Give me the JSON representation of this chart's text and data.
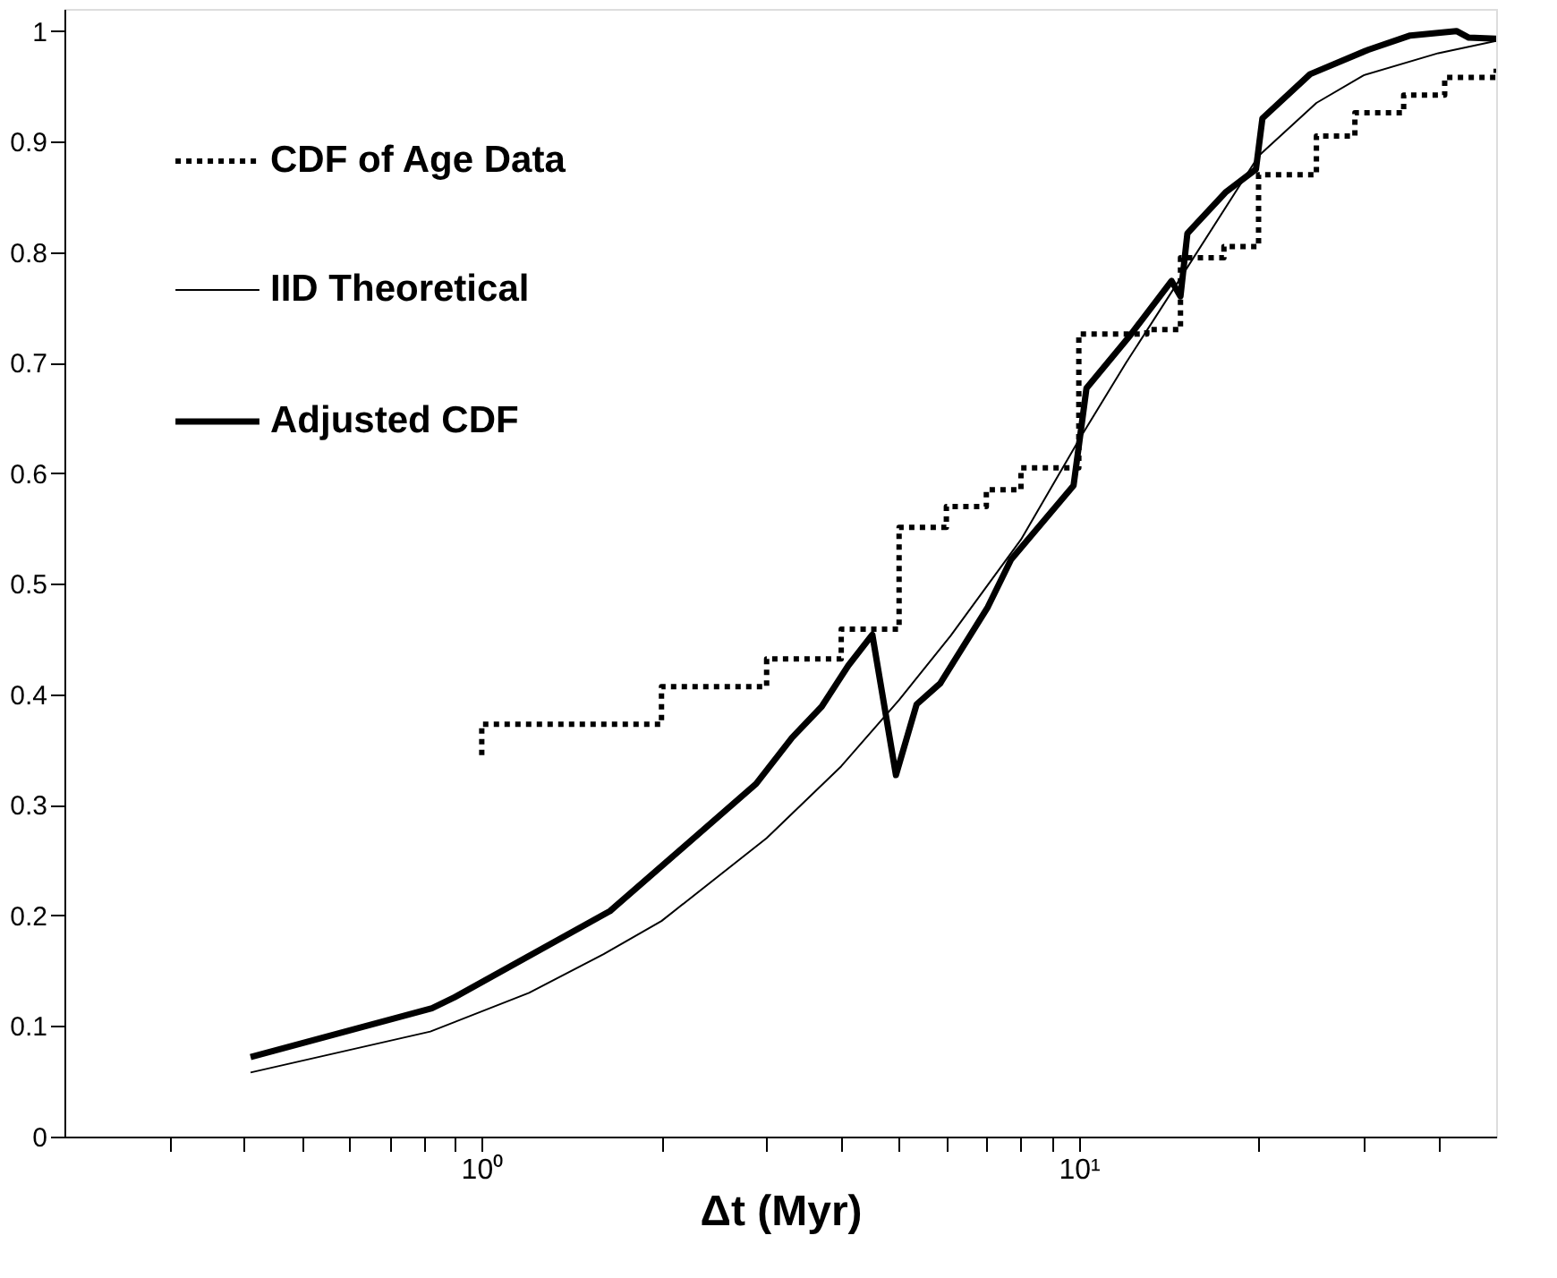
{
  "chart_data": {
    "type": "line",
    "xlabel": "Δt (Myr)",
    "log": "x",
    "grid": false,
    "legend": "top left",
    "xlim": [
      0.2,
      50
    ],
    "ylim": [
      0,
      1.02
    ],
    "xticks": [
      {
        "value": 0.3,
        "label": null
      },
      {
        "value": 0.4,
        "label": null
      },
      {
        "value": 0.5,
        "label": null
      },
      {
        "value": 0.6,
        "label": null
      },
      {
        "value": 0.7,
        "label": null
      },
      {
        "value": 0.8,
        "label": null
      },
      {
        "value": 0.9,
        "label": null
      },
      {
        "value": 1,
        "label": "10⁰"
      },
      {
        "value": 2,
        "label": null
      },
      {
        "value": 3,
        "label": null
      },
      {
        "value": 4,
        "label": null
      },
      {
        "value": 5,
        "label": null
      },
      {
        "value": 6,
        "label": null
      },
      {
        "value": 7,
        "label": null
      },
      {
        "value": 8,
        "label": null
      },
      {
        "value": 9,
        "label": null
      },
      {
        "value": 10,
        "label": "10¹"
      },
      {
        "value": 20,
        "label": null
      },
      {
        "value": 30,
        "label": null
      },
      {
        "value": 40,
        "label": null
      }
    ],
    "yticks": [
      0,
      0.1,
      0.2,
      0.3,
      0.4,
      0.5,
      0.6,
      0.7,
      0.8,
      0.9,
      1
    ],
    "series": [
      {
        "name": "CDF of Age Data",
        "type": "step",
        "line_style": "dotted",
        "color": "#000000",
        "x": [
          1,
          1,
          2,
          3,
          4,
          5,
          6,
          7,
          8,
          10,
          13,
          14.8,
          17.5,
          20,
          25,
          29,
          35,
          41,
          50
        ],
        "values": [
          0.345,
          0.373,
          0.407,
          0.432,
          0.459,
          0.551,
          0.57,
          0.585,
          0.605,
          0.726,
          0.73,
          0.795,
          0.805,
          0.87,
          0.905,
          0.926,
          0.942,
          0.958,
          0.966
        ]
      },
      {
        "name": "IID Theoretical",
        "line_style": "solid",
        "color": "#000000",
        "x": [
          0.41,
          0.82,
          1.2,
          1.6,
          2,
          3,
          4,
          5,
          6.1,
          8,
          10,
          12,
          14.7,
          20,
          25,
          30,
          40,
          50
        ],
        "values": [
          0.058,
          0.095,
          0.13,
          0.165,
          0.195,
          0.27,
          0.335,
          0.395,
          0.453,
          0.54,
          0.63,
          0.7,
          0.774,
          0.887,
          0.935,
          0.96,
          0.98,
          0.991
        ]
      },
      {
        "name": "Adjusted CDF",
        "line_style": "solid",
        "color": "#000000",
        "x": [
          0.41,
          0.825,
          0.9,
          1.64,
          2.88,
          3.31,
          3.71,
          4.11,
          4.51,
          4.94,
          5.35,
          5.86,
          7.04,
          7.7,
          9.8,
          10.3,
          12.2,
          14.3,
          14.8,
          15.2,
          17.6,
          19.8,
          20.3,
          24.4,
          30.5,
          35.9,
          42.9,
          45,
          50
        ],
        "values": [
          0.072,
          0.116,
          0.126,
          0.204,
          0.319,
          0.361,
          0.389,
          0.426,
          0.454,
          0.327,
          0.391,
          0.41,
          0.479,
          0.522,
          0.589,
          0.677,
          0.725,
          0.774,
          0.76,
          0.817,
          0.854,
          0.875,
          0.921,
          0.961,
          0.983,
          0.996,
          1.0,
          0.994,
          0.993
        ]
      }
    ]
  }
}
